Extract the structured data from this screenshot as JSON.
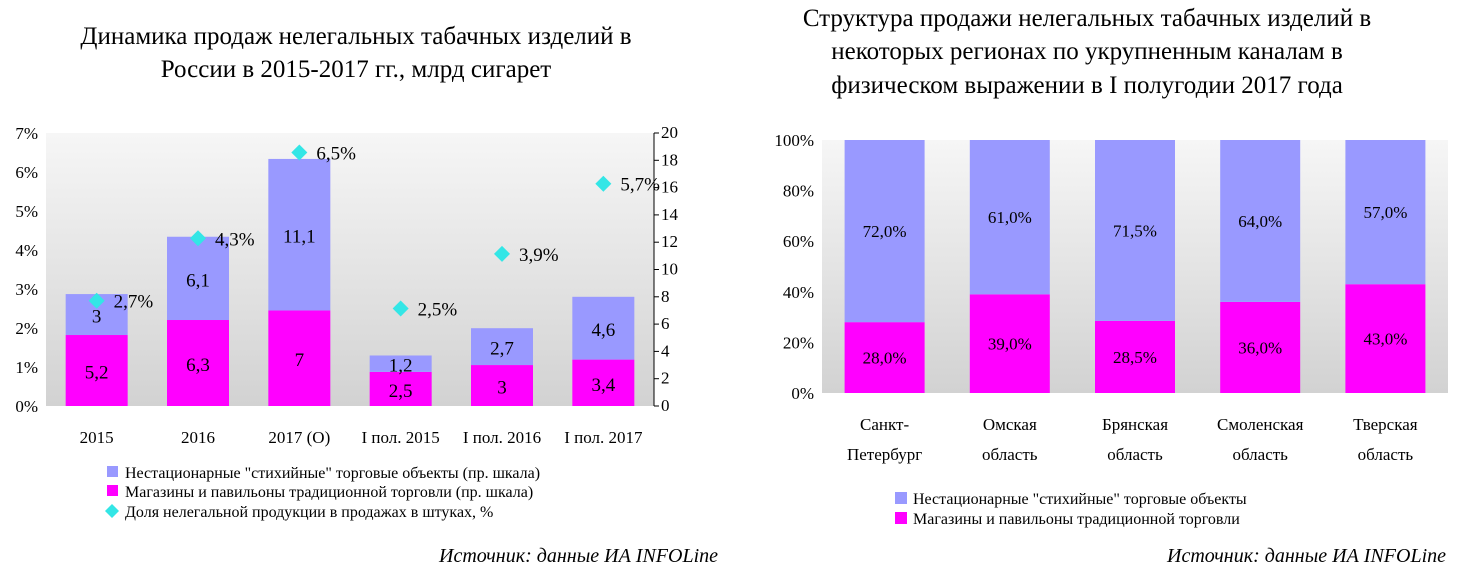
{
  "colors": {
    "nonstationary": "#9999FF",
    "shops": "#FF00FF",
    "share": "#33E6E6",
    "plot_bg_top": "#f4f4f4",
    "plot_bg_bottom": "#d4d4d4"
  },
  "chart_data": [
    {
      "type": "bar",
      "stacked": true,
      "title": [
        "Динамика продаж нелегальных табачных изделий в",
        "России в 2015-2017 гг., млрд сигарет"
      ],
      "categories": [
        "2015",
        "2016",
        "2017 (О)",
        "I пол. 2015",
        "I пол. 2016",
        "I пол. 2017"
      ],
      "series": [
        {
          "name": "Магазины и павильоны традиционной торговли (пр. шкала)",
          "color": "#FF00FF",
          "axis": "right",
          "values": [
            5.2,
            6.3,
            7,
            2.5,
            3,
            3.4
          ],
          "labels": [
            "5,2",
            "6,3",
            "7",
            "2,5",
            "3",
            "3,4"
          ]
        },
        {
          "name": "Нестационарные \"стихийные\" торговые объекты (пр. шкала)",
          "color": "#9999FF",
          "axis": "right",
          "values": [
            3,
            6.1,
            11.1,
            1.2,
            2.7,
            4.6
          ],
          "labels": [
            "3",
            "6,1",
            "11,1",
            "1,2",
            "2,7",
            "4,6"
          ]
        },
        {
          "name": "Доля нелегальной продукции в продажах в штуках, %",
          "type": "scatter",
          "marker": "diamond",
          "color": "#33E6E6",
          "axis": "left",
          "values": [
            2.7,
            4.3,
            6.5,
            2.5,
            3.9,
            5.7
          ],
          "labels": [
            "2,7%",
            "4,3%",
            "6,5%",
            "2,5%",
            "3,9%",
            "5,7%"
          ]
        }
      ],
      "y_left": {
        "ticks": [
          "0%",
          "1%",
          "2%",
          "3%",
          "4%",
          "5%",
          "6%",
          "7%"
        ],
        "ylim": [
          0,
          7
        ]
      },
      "y_right": {
        "ticks": [
          "0",
          "2",
          "4",
          "6",
          "8",
          "10",
          "12",
          "14",
          "16",
          "18",
          "20"
        ],
        "ylim": [
          0,
          20
        ]
      },
      "grid": false,
      "legend": "bottom",
      "source": "Источник: данные ИА INFOLine"
    },
    {
      "type": "bar",
      "stacked": true,
      "percent": true,
      "title": [
        "Структура продажи нелегальных табачных изделий в",
        "некоторых регионах по укрупненным каналам в",
        "физическом выражении в I полугодии 2017 года"
      ],
      "categories": [
        [
          "Санкт-",
          "Петербург"
        ],
        [
          "Омская",
          "область"
        ],
        [
          "Брянская",
          "область"
        ],
        [
          "Смоленская",
          "область"
        ],
        [
          "Тверская",
          "область"
        ]
      ],
      "series": [
        {
          "name": "Магазины и павильоны традиционной торговли",
          "color": "#FF00FF",
          "values": [
            28.0,
            39.0,
            28.5,
            36.0,
            43.0
          ],
          "labels": [
            "28,0%",
            "39,0%",
            "28,5%",
            "36,0%",
            "43,0%"
          ]
        },
        {
          "name": "Нестационарные \"стихийные\" торговые объекты",
          "color": "#9999FF",
          "values": [
            72.0,
            61.0,
            71.5,
            64.0,
            57.0
          ],
          "labels": [
            "72,0%",
            "61,0%",
            "71,5%",
            "64,0%",
            "57,0%"
          ]
        }
      ],
      "y": {
        "ticks": [
          "0%",
          "20%",
          "40%",
          "60%",
          "80%",
          "100%"
        ],
        "ylim": [
          0,
          100
        ]
      },
      "grid": false,
      "legend": "bottom",
      "legend_order": [
        "Нестационарные \"стихийные\" торговые объекты",
        "Магазины и павильоны традиционной торговли"
      ],
      "source": "Источник: данные ИА INFOLine"
    }
  ]
}
